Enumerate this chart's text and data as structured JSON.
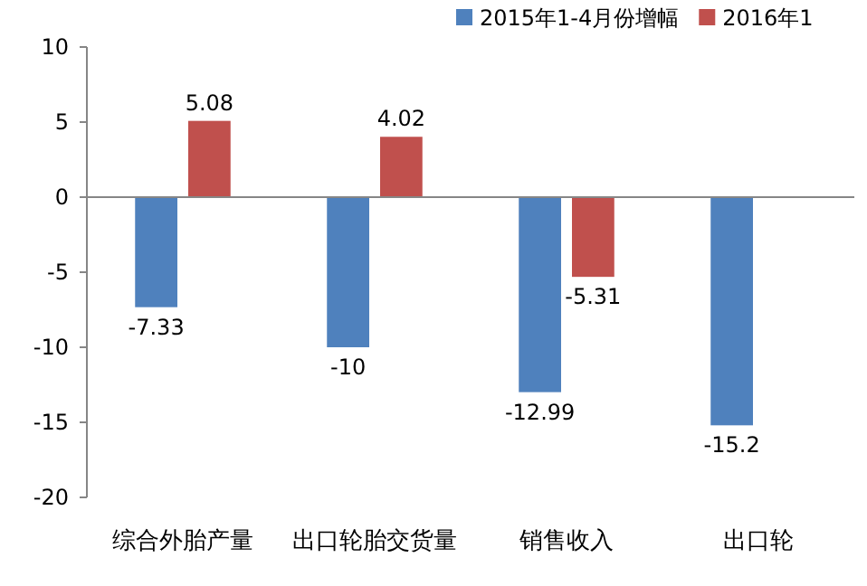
{
  "chart_data": {
    "type": "bar",
    "categories": [
      "综合外胎产量",
      "出口轮胎交货量",
      "销售收入",
      "出口轮"
    ],
    "series": [
      {
        "name": "2015年1-4月份增幅",
        "color": "#4f81bd",
        "values": [
          -7.33,
          -10,
          -12.99,
          -15.2
        ]
      },
      {
        "name": "2016年1",
        "color": "#c0504d",
        "values": [
          5.08,
          4.02,
          -5.31,
          null
        ]
      }
    ],
    "data_labels": true,
    "ylim": [
      -20,
      10
    ],
    "yticks": [
      -20,
      -15,
      -10,
      -5,
      0,
      5,
      10
    ],
    "legend": "top right"
  }
}
